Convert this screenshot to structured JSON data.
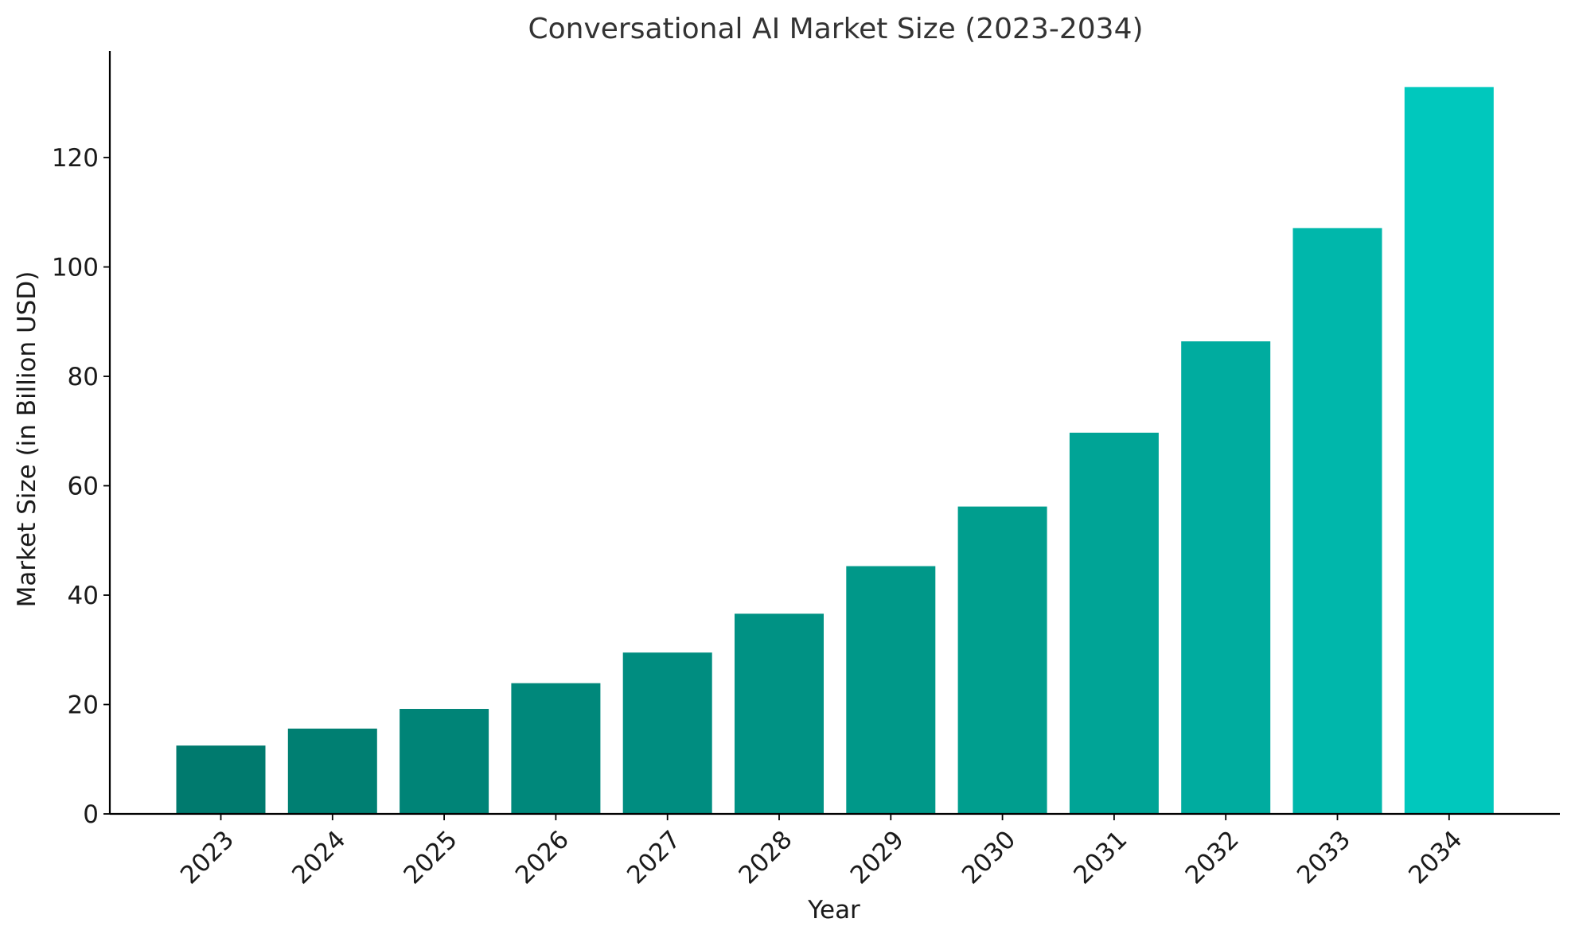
{
  "chart_data": {
    "type": "bar",
    "title": "Conversational AI Market Size (2023-2034)",
    "xlabel": "Year",
    "ylabel": "Market Size (in Billion USD)",
    "categories": [
      "2023",
      "2024",
      "2025",
      "2026",
      "2027",
      "2028",
      "2029",
      "2030",
      "2031",
      "2032",
      "2033",
      "2034"
    ],
    "values": [
      12.5,
      15.6,
      19.2,
      23.9,
      29.5,
      36.6,
      45.3,
      56.2,
      69.7,
      86.4,
      107.1,
      132.9
    ],
    "ylim": [
      0,
      139.5
    ],
    "yticks": [
      0,
      20,
      40,
      60,
      80,
      100,
      120
    ],
    "grid": false,
    "legend": "none",
    "bar_colors": [
      "#007a6e",
      "#007f72",
      "#008477",
      "#00887b",
      "#008d80",
      "#009284",
      "#009889",
      "#009e8e",
      "#00a496",
      "#00ac9f",
      "#00b7ab",
      "#00c8bd"
    ]
  }
}
